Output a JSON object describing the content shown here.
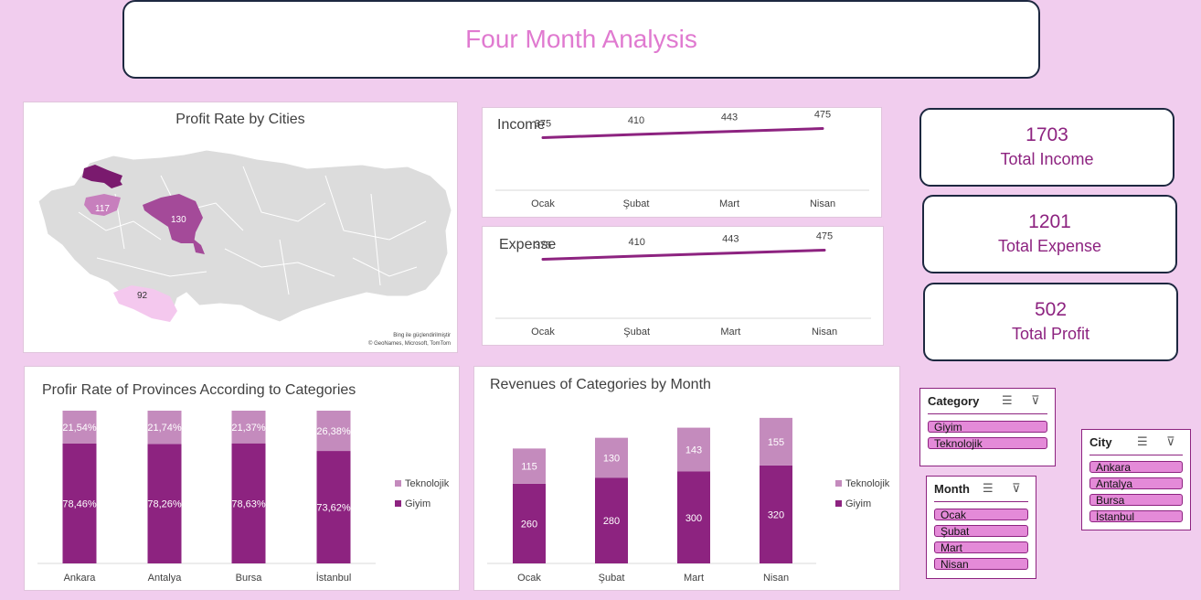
{
  "header": {
    "title": "Four Month Analysis"
  },
  "map": {
    "title": "Profit Rate by Cities",
    "labels": {
      "bursa": "117",
      "ankara": "130",
      "antalya": "92"
    },
    "credit1": "Bing ile güçlendirilmiştir",
    "credit2": "© GeoNames, Microsoft, TomTom"
  },
  "colors": {
    "giyim": "#8d2380",
    "teknolojik": "#c48bbd",
    "istanbul": "#7a1a6e",
    "bursa": "#c77fbd",
    "ankara": "#a44a99",
    "antalya": "#f4c8ee",
    "land": "#dcdcdc"
  },
  "kpis": {
    "income": {
      "value": "1703",
      "label": "Total Income"
    },
    "expense": {
      "value": "1201",
      "label": "Total Expense"
    },
    "profit": {
      "value": "502",
      "label": "Total Profit"
    }
  },
  "slicers": {
    "category": {
      "title": "Category",
      "items": [
        "Giyim",
        "Teknolojik"
      ]
    },
    "month": {
      "title": "Month",
      "items": [
        "Ocak",
        "Şubat",
        "Mart",
        "Nisan"
      ]
    },
    "city": {
      "title": "City",
      "items": [
        "Ankara",
        "Antalya",
        "Bursa",
        "İstanbul"
      ]
    }
  },
  "chart_data": [
    {
      "type": "line",
      "title": "Income",
      "categories": [
        "Ocak",
        "Şubat",
        "Mart",
        "Nisan"
      ],
      "values": [
        375,
        410,
        443,
        475
      ],
      "ylim": [
        0,
        3200
      ]
    },
    {
      "type": "line",
      "title": "Expense",
      "categories": [
        "Ocak",
        "Şubat",
        "Mart",
        "Nisan"
      ],
      "values": [
        375,
        410,
        443,
        475
      ],
      "ylim": [
        0,
        3200
      ]
    },
    {
      "type": "bar",
      "stacked": "percent",
      "title": "Profir Rate of Provinces According to Categories",
      "categories": [
        "Ankara",
        "Antalya",
        "Bursa",
        "İstanbul"
      ],
      "series": [
        {
          "name": "Giyim",
          "values": [
            78.46,
            78.26,
            78.63,
            73.62
          ],
          "labels": [
            "78,46%",
            "78,26%",
            "78,63%",
            "73,62%"
          ]
        },
        {
          "name": "Teknolojik",
          "values": [
            21.54,
            21.74,
            21.37,
            26.38
          ],
          "labels": [
            "21,54%",
            "21,74%",
            "21,37%",
            "26,38%"
          ]
        }
      ],
      "legend": "right"
    },
    {
      "type": "bar",
      "stacked": "normal",
      "title": "Revenues of Categories by Month",
      "categories": [
        "Ocak",
        "Şubat",
        "Mart",
        "Nisan"
      ],
      "series": [
        {
          "name": "Giyim",
          "values": [
            260,
            280,
            300,
            320
          ]
        },
        {
          "name": "Teknolojik",
          "values": [
            115,
            130,
            143,
            155
          ]
        }
      ],
      "legend": "right"
    }
  ]
}
